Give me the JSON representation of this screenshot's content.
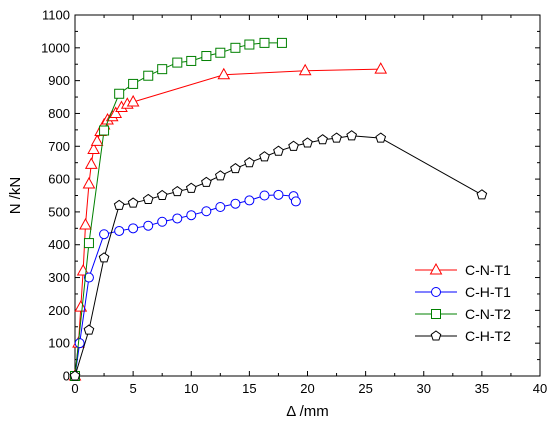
{
  "chart_data": {
    "type": "line",
    "title": "",
    "xlabel": "Δ /mm",
    "ylabel": "N /kN",
    "xlim": [
      0,
      40
    ],
    "ylim": [
      0,
      1100
    ],
    "x_ticks": [
      0,
      5,
      10,
      15,
      20,
      25,
      30,
      35,
      40
    ],
    "y_ticks": [
      0,
      100,
      200,
      300,
      400,
      500,
      600,
      700,
      800,
      900,
      1000,
      1100
    ],
    "grid": false,
    "legend_position": "lower-right",
    "series": [
      {
        "name": "C-N-T1",
        "color": "#ff0000",
        "marker": "triangle",
        "points": [
          [
            0,
            0
          ],
          [
            0.3,
            100
          ],
          [
            0.5,
            210
          ],
          [
            0.7,
            320
          ],
          [
            0.9,
            460
          ],
          [
            1.2,
            585
          ],
          [
            1.4,
            645
          ],
          [
            1.6,
            690
          ],
          [
            1.9,
            715
          ],
          [
            2.2,
            745
          ],
          [
            2.5,
            765
          ],
          [
            2.8,
            780
          ],
          [
            3.2,
            790
          ],
          [
            3.5,
            800
          ],
          [
            4,
            818
          ],
          [
            4.5,
            828
          ],
          [
            5,
            835
          ],
          [
            12.8,
            918
          ],
          [
            19.8,
            930
          ],
          [
            26.3,
            935
          ]
        ]
      },
      {
        "name": "C-H-T1",
        "color": "#0000ff",
        "marker": "circle",
        "points": [
          [
            0,
            0
          ],
          [
            0.4,
            100
          ],
          [
            1.2,
            300
          ],
          [
            2.5,
            432
          ],
          [
            3.8,
            442
          ],
          [
            5,
            450
          ],
          [
            6.3,
            458
          ],
          [
            7.5,
            470
          ],
          [
            8.8,
            480
          ],
          [
            10,
            490
          ],
          [
            11.3,
            502
          ],
          [
            12.5,
            515
          ],
          [
            13.8,
            525
          ],
          [
            15,
            535
          ],
          [
            16.3,
            550
          ],
          [
            17.5,
            552
          ],
          [
            18.8,
            548
          ],
          [
            19,
            532
          ]
        ]
      },
      {
        "name": "C-N-T2",
        "color": "#008000",
        "marker": "square",
        "points": [
          [
            0,
            0
          ],
          [
            1.2,
            405
          ],
          [
            2.5,
            748
          ],
          [
            3.8,
            860
          ],
          [
            5,
            890
          ],
          [
            6.3,
            915
          ],
          [
            7.5,
            935
          ],
          [
            8.8,
            955
          ],
          [
            10,
            960
          ],
          [
            11.3,
            975
          ],
          [
            12.5,
            985
          ],
          [
            13.8,
            1000
          ],
          [
            15,
            1010
          ],
          [
            16.3,
            1015
          ],
          [
            17.8,
            1015
          ]
        ]
      },
      {
        "name": "C-H-T2",
        "color": "#000000",
        "marker": "pentagon",
        "points": [
          [
            0,
            0
          ],
          [
            1.2,
            140
          ],
          [
            2.5,
            360
          ],
          [
            3.8,
            520
          ],
          [
            5,
            527
          ],
          [
            6.3,
            538
          ],
          [
            7.5,
            550
          ],
          [
            8.8,
            562
          ],
          [
            10,
            572
          ],
          [
            11.3,
            590
          ],
          [
            12.5,
            610
          ],
          [
            13.8,
            632
          ],
          [
            15,
            650
          ],
          [
            16.3,
            668
          ],
          [
            17.5,
            685
          ],
          [
            18.8,
            700
          ],
          [
            20,
            710
          ],
          [
            21.3,
            720
          ],
          [
            22.5,
            725
          ],
          [
            23.8,
            732
          ],
          [
            26.3,
            725
          ],
          [
            35,
            552
          ]
        ]
      }
    ]
  }
}
